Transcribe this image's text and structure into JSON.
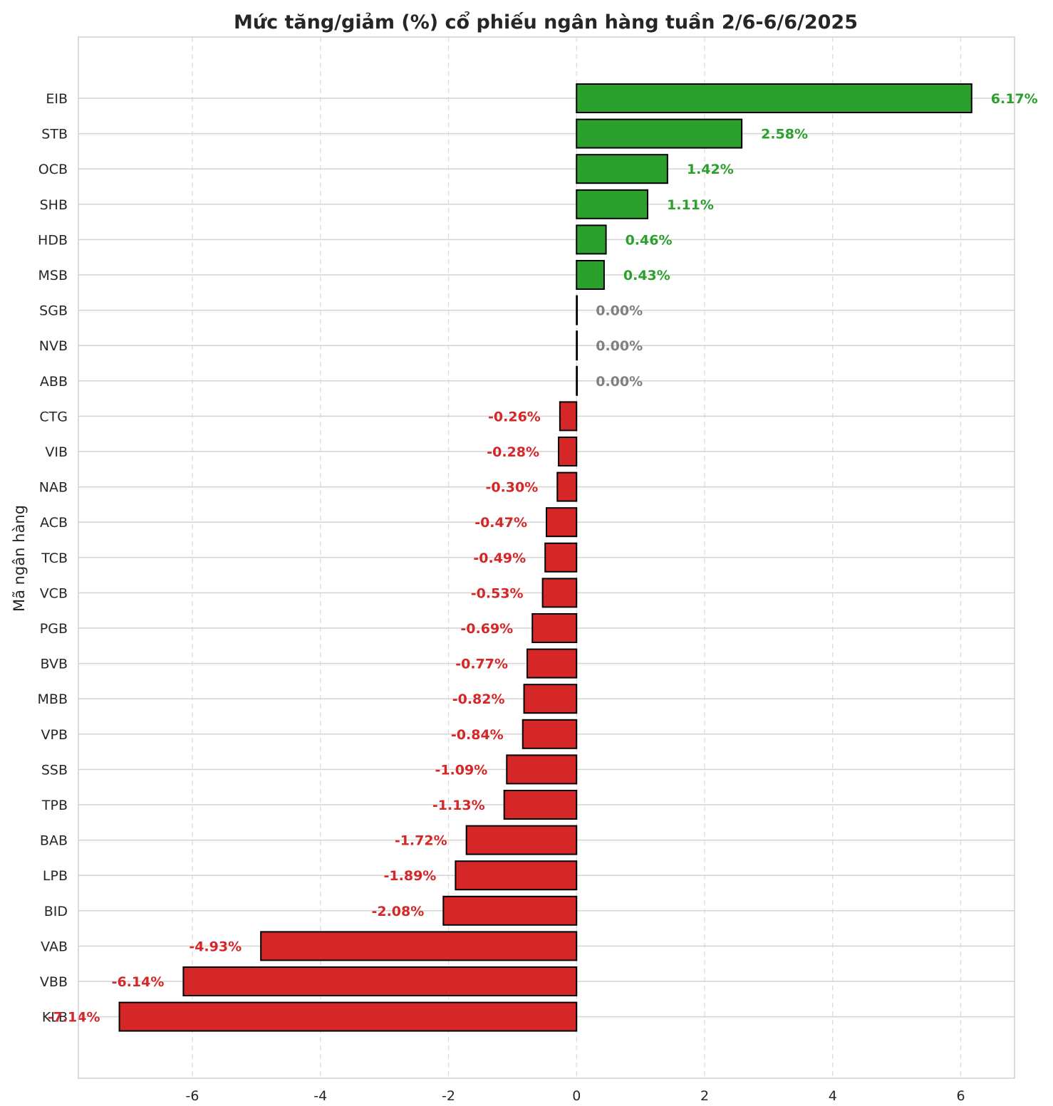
{
  "chart_data": {
    "type": "bar",
    "orientation": "horizontal",
    "title": "Mức tăng/giảm (%) cổ phiếu ngân hàng tuần 2/6-6/6/2025",
    "xlabel": "",
    "ylabel": "Mã ngân hàng",
    "xlim": [
      -7.78,
      6.84
    ],
    "xticks": [
      -6,
      -4,
      -2,
      0,
      2,
      4,
      6
    ],
    "xtick_labels": [
      "-6",
      "-4",
      "-2",
      "0",
      "2",
      "4",
      "6"
    ],
    "grid": true,
    "legend": "none",
    "colors": {
      "positive": "#2ca02c",
      "negative": "#d62728",
      "zero": "#808080",
      "edge": "#000000"
    },
    "categories": [
      "EIB",
      "STB",
      "OCB",
      "SHB",
      "HDB",
      "MSB",
      "SGB",
      "NVB",
      "ABB",
      "CTG",
      "VIB",
      "NAB",
      "ACB",
      "TCB",
      "VCB",
      "PGB",
      "BVB",
      "MBB",
      "VPB",
      "SSB",
      "TPB",
      "BAB",
      "LPB",
      "BID",
      "VAB",
      "VBB",
      "KLB"
    ],
    "values": [
      6.17,
      2.58,
      1.42,
      1.11,
      0.46,
      0.43,
      0.0,
      0.0,
      0.0,
      -0.26,
      -0.28,
      -0.3,
      -0.47,
      -0.49,
      -0.53,
      -0.69,
      -0.77,
      -0.82,
      -0.84,
      -1.09,
      -1.13,
      -1.72,
      -1.89,
      -2.08,
      -4.93,
      -6.14,
      -7.14
    ],
    "data_labels": [
      "6.17%",
      "2.58%",
      "1.42%",
      "1.11%",
      "0.46%",
      "0.43%",
      "0.00%",
      "0.00%",
      "0.00%",
      "-0.26%",
      "-0.28%",
      "-0.30%",
      "-0.47%",
      "-0.49%",
      "-0.53%",
      "-0.69%",
      "-0.77%",
      "-0.82%",
      "-0.84%",
      "-1.09%",
      "-1.13%",
      "-1.72%",
      "-1.89%",
      "-2.08%",
      "-4.93%",
      "-6.14%",
      "-7.14%"
    ]
  }
}
